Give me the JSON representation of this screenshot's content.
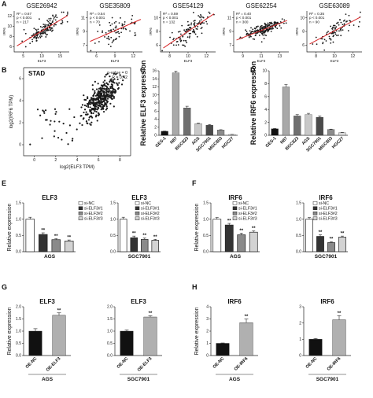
{
  "figure": {
    "panel_labels": [
      "A",
      "B",
      "C",
      "D",
      "E",
      "F",
      "G",
      "H"
    ],
    "colors": {
      "scatter_point": "#1a1a1a",
      "regression_line": "#d62728",
      "ges1": "#111111",
      "n87": "#a9a9a9",
      "bgc823": "#6f6f6f",
      "ags": "#c8c8c8",
      "sgc7901": "#4a4a4a",
      "mgc803": "#8c8c8c",
      "hgc27": "#d8d8d8",
      "nc": "#ffffff",
      "kd1": "#333333",
      "kd2": "#8a8a8a",
      "kd3": "#d3d3d3",
      "oe_nc": "#111111",
      "oe_gene": "#b0b0b0"
    }
  },
  "chart_data": [
    {
      "panel": "A",
      "type": "scatter",
      "title": "GSE26942",
      "xlabel": "ELF3",
      "ylabel": "IRF6",
      "stats": [
        "R² = 0.67",
        "p < 0.001",
        "n = 217"
      ],
      "xticks": [
        "5",
        "10",
        "15"
      ],
      "yticks": [
        "6",
        "8",
        "10",
        "12"
      ]
    },
    {
      "panel": "A",
      "type": "scatter",
      "title": "GSE35809",
      "xlabel": "ELF3",
      "ylabel": "IRF6",
      "stats": [
        "R² = 0.54",
        "p < 0.001",
        "n = 70"
      ],
      "xticks": [
        "6",
        "9",
        "12"
      ],
      "yticks": [
        "7",
        "9",
        "11"
      ]
    },
    {
      "panel": "A",
      "type": "scatter",
      "title": "GSE54129",
      "xlabel": "ELF3",
      "ylabel": "IRF6",
      "stats": [
        "R² = 0.59",
        "p < 0.001",
        "n = 132"
      ],
      "xticks": [
        "8",
        "10",
        "12"
      ],
      "yticks": [
        "6",
        "8",
        "10"
      ]
    },
    {
      "panel": "A",
      "type": "scatter",
      "title": "GSE62254",
      "xlabel": "ELF3",
      "ylabel": "IRF6",
      "stats": [
        "R² = 0.40",
        "p < 0.001",
        "n = 300"
      ],
      "xticks": [
        "9",
        "11",
        "13"
      ],
      "yticks": [
        "7",
        "9",
        "11"
      ]
    },
    {
      "panel": "A",
      "type": "scatter",
      "title": "GSE63089",
      "xlabel": "ELF3",
      "ylabel": "IRF6",
      "stats": [
        "R² = 0.35",
        "p < 0.001",
        "n = 90"
      ],
      "xticks": [
        "8",
        "10",
        "12"
      ],
      "yticks": [
        "6",
        "8",
        "10"
      ]
    },
    {
      "panel": "B",
      "type": "scatter",
      "title": "STAD",
      "xlabel": "log2(ELF3 TPM)",
      "ylabel": "log2(IRF6 TPM)",
      "stats": [
        "p-value = 0",
        "R = 0.42"
      ],
      "xticks": [
        "0",
        "2",
        "4",
        "6",
        "8"
      ],
      "yticks": [
        "0",
        "2",
        "4",
        "6"
      ]
    },
    {
      "panel": "C",
      "type": "bar",
      "ylabel": "Relative ELF3 expression",
      "categories": [
        "GES-1",
        "N87",
        "BGC823",
        "AGS",
        "SGC7901",
        "MGC803",
        "HGC27"
      ],
      "values": [
        1.0,
        15.5,
        6.8,
        2.9,
        2.5,
        1.3,
        0.2
      ],
      "errors": [
        0.05,
        0.4,
        0.4,
        0.15,
        0.15,
        0.08,
        0.03
      ],
      "yticks": [
        "0",
        "2",
        "4",
        "6",
        "8",
        "10",
        "12",
        "14",
        "16"
      ],
      "ylim": [
        0,
        16
      ]
    },
    {
      "panel": "D",
      "type": "bar",
      "ylabel": "Relative IRF6 expression",
      "categories": [
        "GES-1",
        "N87",
        "BGC823",
        "AGS",
        "SGC7901",
        "MGC803",
        "HGC27"
      ],
      "values": [
        1.0,
        7.5,
        3.0,
        3.2,
        2.8,
        0.9,
        0.4
      ],
      "errors": [
        0.05,
        0.35,
        0.2,
        0.2,
        0.2,
        0.05,
        0.04
      ],
      "yticks": [
        "0",
        "2",
        "4",
        "6",
        "8",
        "10"
      ],
      "ylim": [
        0,
        10
      ]
    },
    {
      "panel": "E",
      "type": "bar",
      "title": "ELF3",
      "group": "AGS",
      "ylabel": "Relative expression",
      "legend": [
        "si-NC",
        "si-ELF3#1",
        "si-ELF3#2",
        "si-ELF3#3"
      ],
      "values": [
        1.0,
        0.53,
        0.37,
        0.33
      ],
      "errors": [
        0.06,
        0.05,
        0.03,
        0.03
      ],
      "sig": [
        "",
        "**",
        "**",
        "**"
      ],
      "yticks": [
        "0.0",
        "0.5",
        "1.0",
        "1.5"
      ],
      "ylim": [
        0,
        1.5
      ]
    },
    {
      "panel": "E",
      "type": "bar",
      "title": "ELF3",
      "group": "SGC7901",
      "ylabel": "",
      "legend": [
        "si-NC",
        "si-ELF3#1",
        "si-ELF3#2",
        "si-ELF3#3"
      ],
      "values": [
        1.0,
        0.43,
        0.38,
        0.35
      ],
      "errors": [
        0.06,
        0.05,
        0.04,
        0.03
      ],
      "sig": [
        "",
        "**",
        "**",
        "**"
      ],
      "yticks": [
        "0.0",
        "0.5",
        "1.0",
        "1.5"
      ],
      "ylim": [
        0,
        1.5
      ]
    },
    {
      "panel": "F",
      "type": "bar",
      "title": "IRF6",
      "group": "AGS",
      "ylabel": "Relative expression",
      "legend": [
        "si-NC",
        "si-ELF3#1",
        "si-ELF3#2",
        "si-ELF3#3"
      ],
      "values": [
        1.0,
        0.82,
        0.52,
        0.6
      ],
      "errors": [
        0.05,
        0.05,
        0.05,
        0.04
      ],
      "sig": [
        "",
        "**",
        "**",
        "**"
      ],
      "yticks": [
        "0.0",
        "0.5",
        "1.0",
        "1.5"
      ],
      "ylim": [
        0,
        1.5
      ]
    },
    {
      "panel": "F",
      "type": "bar",
      "title": "IRF6",
      "group": "SGC7901",
      "ylabel": "",
      "legend": [
        "si-NC",
        "si-ELF3#1",
        "si-ELF3#2",
        "si-ELF3#3"
      ],
      "values": [
        1.0,
        0.47,
        0.28,
        0.45
      ],
      "errors": [
        0.05,
        0.05,
        0.03,
        0.03
      ],
      "sig": [
        "",
        "**",
        "**",
        "**"
      ],
      "yticks": [
        "0.0",
        "0.5",
        "1.0",
        "1.5"
      ],
      "ylim": [
        0,
        1.5
      ]
    },
    {
      "panel": "G",
      "type": "bar",
      "title": "ELF3",
      "group": "AGS",
      "ylabel": "Relative expression",
      "categories": [
        "OE-NC",
        "OE-ELF3"
      ],
      "values": [
        1.0,
        1.65
      ],
      "errors": [
        0.1,
        0.1
      ],
      "sig": [
        "",
        "**"
      ],
      "yticks": [
        "0.0",
        "0.5",
        "1.0",
        "1.5",
        "2.0"
      ],
      "ylim": [
        0,
        2.0
      ]
    },
    {
      "panel": "G",
      "type": "bar",
      "title": "ELF3",
      "group": "SGC7901",
      "ylabel": "",
      "categories": [
        "OE-NC",
        "OE-ELF3"
      ],
      "values": [
        1.0,
        1.58
      ],
      "errors": [
        0.05,
        0.05
      ],
      "sig": [
        "",
        "**"
      ],
      "yticks": [
        "0.0",
        "0.5",
        "1.0",
        "1.5",
        "2.0"
      ],
      "ylim": [
        0,
        2.0
      ]
    },
    {
      "panel": "H",
      "type": "bar",
      "title": "IRF6",
      "group": "AGS",
      "ylabel": "Relative expression",
      "categories": [
        "OE-NC",
        "OE-IRF6"
      ],
      "values": [
        1.0,
        2.7
      ],
      "errors": [
        0.03,
        0.3
      ],
      "sig": [
        "",
        "**"
      ],
      "yticks": [
        "0",
        "1",
        "2",
        "3",
        "4"
      ],
      "ylim": [
        0,
        4
      ]
    },
    {
      "panel": "H",
      "type": "bar",
      "title": "IRF6",
      "group": "SGC7901",
      "ylabel": "",
      "categories": [
        "OE-NC",
        "OE-IRF6"
      ],
      "values": [
        1.0,
        2.2
      ],
      "errors": [
        0.05,
        0.25
      ],
      "sig": [
        "",
        "**"
      ],
      "yticks": [
        "0",
        "1",
        "2",
        "3"
      ],
      "ylim": [
        0,
        3
      ]
    }
  ]
}
